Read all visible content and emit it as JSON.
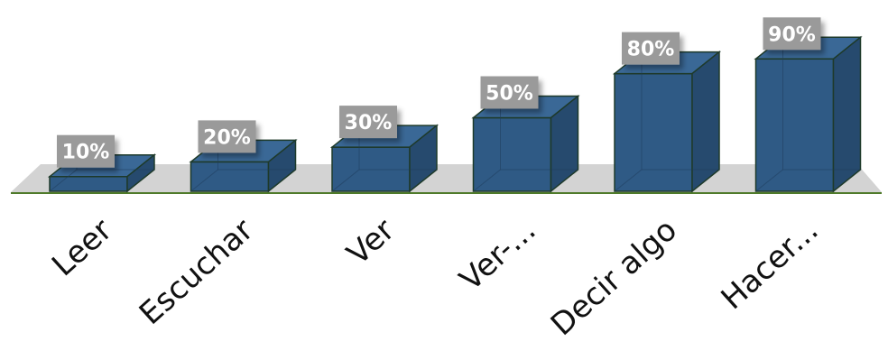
{
  "chart_data": {
    "type": "bar",
    "categories": [
      "Leer",
      "Escuchar",
      "Ver",
      "Ver-...",
      "Decir algo",
      "Hacer..."
    ],
    "values": [
      10,
      20,
      30,
      50,
      80,
      90
    ],
    "data_labels": [
      "10%",
      "20%",
      "30%",
      "50%",
      "80%",
      "90%"
    ],
    "title": "",
    "xlabel": "",
    "ylabel": "",
    "ylim": [
      0,
      100
    ],
    "grid": false,
    "legend": "none",
    "style": "3d-column"
  },
  "colors": {
    "bar_front": "#2f5a85",
    "bar_top": "#3a6896",
    "bar_side": "#264a6e",
    "bar_edge": "#1e3a2a",
    "floor": "#d3d3d3",
    "axis_line": "#4f7a2a",
    "label_box": "#9a9a9a"
  }
}
